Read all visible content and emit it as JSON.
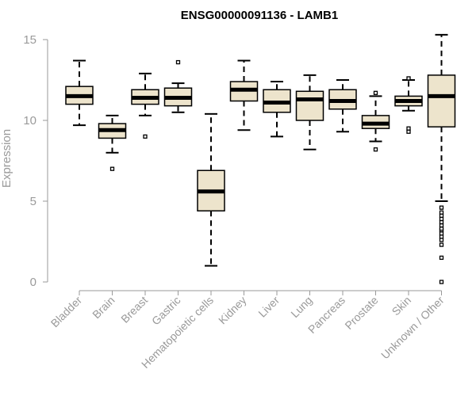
{
  "chart_data": {
    "type": "box",
    "title": "ENSG00000091136 - LAMB1",
    "xlabel": "",
    "ylabel": "Expression",
    "ylim": [
      0,
      15
    ],
    "yticks": [
      0,
      5,
      10,
      15
    ],
    "grid": false,
    "colors": {
      "box_fill": "#ede4cc",
      "stroke": "#000000",
      "axis": "#9a9a9a",
      "label": "#9a9a9a"
    },
    "boxes": [
      {
        "category": "Bladder",
        "whisker_low": 9.7,
        "q1": 11.0,
        "median": 11.5,
        "q3": 12.1,
        "whisker_high": 13.7,
        "outliers": []
      },
      {
        "category": "Brain",
        "whisker_low": 8.0,
        "q1": 8.9,
        "median": 9.4,
        "q3": 9.8,
        "whisker_high": 10.3,
        "outliers": [
          7.0
        ]
      },
      {
        "category": "Breast",
        "whisker_low": 10.3,
        "q1": 11.0,
        "median": 11.4,
        "q3": 11.9,
        "whisker_high": 12.9,
        "outliers": [
          9.0
        ]
      },
      {
        "category": "Gastric",
        "whisker_low": 10.5,
        "q1": 10.9,
        "median": 11.4,
        "q3": 12.0,
        "whisker_high": 12.3,
        "outliers": [
          13.6
        ]
      },
      {
        "category": "Hematopoietic cells",
        "whisker_low": 1.0,
        "q1": 4.4,
        "median": 5.6,
        "q3": 6.9,
        "whisker_high": 10.4,
        "outliers": []
      },
      {
        "category": "Kidney",
        "whisker_low": 9.4,
        "q1": 11.2,
        "median": 11.9,
        "q3": 12.4,
        "whisker_high": 13.7,
        "outliers": []
      },
      {
        "category": "Liver",
        "whisker_low": 9.0,
        "q1": 10.5,
        "median": 11.1,
        "q3": 11.9,
        "whisker_high": 12.4,
        "outliers": []
      },
      {
        "category": "Lung",
        "whisker_low": 8.2,
        "q1": 10.0,
        "median": 11.3,
        "q3": 11.8,
        "whisker_high": 12.8,
        "outliers": []
      },
      {
        "category": "Pancreas",
        "whisker_low": 9.3,
        "q1": 10.7,
        "median": 11.2,
        "q3": 11.9,
        "whisker_high": 12.5,
        "outliers": []
      },
      {
        "category": "Prostate",
        "whisker_low": 8.7,
        "q1": 9.5,
        "median": 9.8,
        "q3": 10.3,
        "whisker_high": 11.5,
        "outliers": [
          8.2,
          11.7
        ]
      },
      {
        "category": "Skin",
        "whisker_low": 10.6,
        "q1": 10.9,
        "median": 11.2,
        "q3": 11.5,
        "whisker_high": 12.5,
        "outliers": [
          9.3,
          9.5,
          12.6
        ]
      },
      {
        "category": "Unknown / Other",
        "whisker_low": 5.0,
        "q1": 9.6,
        "median": 11.5,
        "q3": 12.8,
        "whisker_high": 15.3,
        "outliers": [
          0.0,
          1.5,
          2.3,
          2.6,
          2.8,
          3.0,
          3.2,
          3.3,
          3.5,
          3.7,
          3.9,
          4.1,
          4.3,
          4.6
        ]
      }
    ]
  }
}
